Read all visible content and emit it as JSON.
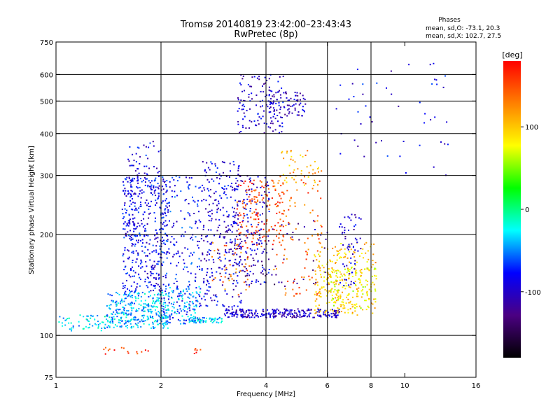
{
  "chart_data": {
    "type": "scatter",
    "title": "Tromsø 20140819 23:42:00–23:43:43",
    "subtitle": "RwPretec (8p)",
    "xlabel": "Frequency [MHz]",
    "ylabel": "Stationary phase Virtual Height [km]",
    "x_scale": "log",
    "y_scale": "log",
    "xlim": [
      1,
      16
    ],
    "ylim": [
      75,
      750
    ],
    "x_ticks": [
      1,
      2,
      4,
      6,
      8,
      10,
      16
    ],
    "x_tick_labels": [
      "1",
      "2",
      "4",
      "6",
      "8",
      "10",
      "16"
    ],
    "y_ticks": [
      75,
      100,
      200,
      300,
      400,
      500,
      600,
      750
    ],
    "y_tick_labels": [
      "75",
      "100",
      "200",
      "300",
      "400",
      "500",
      "600",
      "750"
    ],
    "x_gridlines": [
      2,
      4,
      6,
      8
    ],
    "y_gridlines": [
      100,
      200,
      300,
      400,
      500,
      600
    ],
    "grid": true,
    "phase_box": {
      "heading": "Phases",
      "line_o": "mean, sd,O: -73.1, 20.3",
      "line_x": "mean, sd,X: 102.7, 27.5"
    },
    "colorbar": {
      "label": "[deg]",
      "range": [
        -180,
        180
      ],
      "ticks": [
        100,
        0,
        -100
      ],
      "tick_labels": [
        "100",
        "0",
        "-100"
      ],
      "colormap": "rainbow",
      "colors": [
        "#000000",
        "#4b0082",
        "#0000ff",
        "#00ffff",
        "#00ff00",
        "#ffff00",
        "#ff8000",
        "#ff0000"
      ]
    },
    "clusters": [
      {
        "f": [
          1.0,
          1.4
        ],
        "h": [
          103,
          115
        ],
        "phase": -30,
        "n": 60,
        "shape": "band"
      },
      {
        "f": [
          1.4,
          2.1
        ],
        "h": [
          105,
          135
        ],
        "phase": -40,
        "n": 330,
        "shape": "box"
      },
      {
        "f": [
          1.55,
          2.1
        ],
        "h": [
          135,
          300
        ],
        "phase": -85,
        "n": 420,
        "shape": "box"
      },
      {
        "f": [
          1.6,
          2.0
        ],
        "h": [
          260,
          380
        ],
        "phase": -90,
        "n": 60,
        "shape": "box"
      },
      {
        "f": [
          2.0,
          2.6
        ],
        "h": [
          110,
          300
        ],
        "phase": -80,
        "n": 200,
        "shape": "box"
      },
      {
        "f": [
          2.0,
          2.6
        ],
        "h": [
          108,
          140
        ],
        "phase": -45,
        "n": 120,
        "shape": "box"
      },
      {
        "f": [
          2.6,
          3.4
        ],
        "h": [
          120,
          330
        ],
        "phase": -90,
        "n": 260,
        "shape": "box"
      },
      {
        "f": [
          2.4,
          3.0
        ],
        "h": [
          109,
          113
        ],
        "phase": -40,
        "n": 60,
        "shape": "band"
      },
      {
        "f": [
          3.0,
          6.5
        ],
        "h": [
          113,
          120
        ],
        "phase": -100,
        "n": 260,
        "shape": "band"
      },
      {
        "f": [
          3.3,
          4.5
        ],
        "h": [
          180,
          290
        ],
        "phase": 155,
        "n": 160,
        "shape": "box"
      },
      {
        "f": [
          3.2,
          4.1
        ],
        "h": [
          140,
          300
        ],
        "phase": -95,
        "n": 150,
        "shape": "box"
      },
      {
        "f": [
          3.3,
          4.5
        ],
        "h": [
          400,
          600
        ],
        "phase": -95,
        "n": 120,
        "shape": "box"
      },
      {
        "f": [
          4.0,
          5.2
        ],
        "h": [
          450,
          540
        ],
        "phase": -100,
        "n": 80,
        "shape": "box"
      },
      {
        "f": [
          4.2,
          5.8
        ],
        "h": [
          130,
          300
        ],
        "phase": 140,
        "n": 110,
        "shape": "box"
      },
      {
        "f": [
          4.4,
          5.8
        ],
        "h": [
          280,
          360
        ],
        "phase": 110,
        "n": 45,
        "shape": "box"
      },
      {
        "f": [
          5.5,
          8.3
        ],
        "h": [
          115,
          190
        ],
        "phase": 100,
        "n": 220,
        "shape": "box"
      },
      {
        "f": [
          6.0,
          8.3
        ],
        "h": [
          120,
          160
        ],
        "phase": 80,
        "n": 120,
        "shape": "box"
      },
      {
        "f": [
          6.5,
          7.5
        ],
        "h": [
          140,
          230
        ],
        "phase": -100,
        "n": 60,
        "shape": "box"
      },
      {
        "f": [
          6.0,
          13.5
        ],
        "h": [
          300,
          650
        ],
        "phase": -90,
        "n": 50,
        "shape": "box"
      },
      {
        "f": [
          2.6,
          6.0
        ],
        "h": [
          140,
          220
        ],
        "phase": -120,
        "n": 80,
        "shape": "box"
      },
      {
        "f": [
          2.8,
          3.6
        ],
        "h": [
          130,
          190
        ],
        "phase": 130,
        "n": 40,
        "shape": "box"
      },
      {
        "f": [
          1.3,
          1.9
        ],
        "h": [
          88,
          92
        ],
        "phase": 160,
        "n": 15,
        "shape": "band"
      },
      {
        "f": [
          2.4,
          2.6
        ],
        "h": [
          88,
          92
        ],
        "phase": 160,
        "n": 6,
        "shape": "band"
      }
    ]
  }
}
